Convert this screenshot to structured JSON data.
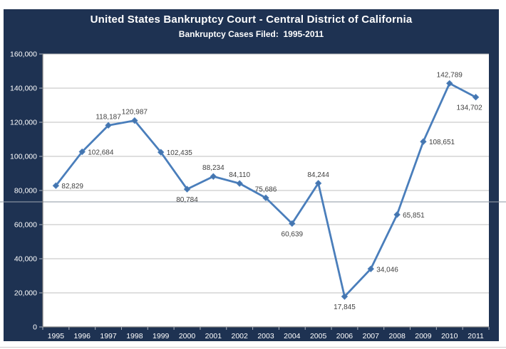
{
  "page": {
    "title": "United States Bankruptcy Court - Central District of California",
    "subtitle": "Bankruptcy Cases Filed:  1995-2011"
  },
  "colors": {
    "panel_bg": "#1e3252",
    "plot_bg": "#ffffff",
    "series_line": "#4a7ebb",
    "marker_fill": "#4575ae",
    "gridline": "#bfbfbf",
    "axis_line": "#7f7f7f",
    "tick": "#aeb6c2",
    "data_label": "#404040",
    "axis_label": "#ffffff",
    "seam_line": "rgba(150,158,170,0.55)"
  },
  "chart_data": {
    "type": "line",
    "title": "United States Bankruptcy Court - Central District of California",
    "subtitle": "Bankruptcy Cases Filed:  1995-2011",
    "categories": [
      "1995",
      "1996",
      "1997",
      "1998",
      "1999",
      "2000",
      "2001",
      "2002",
      "2003",
      "2004",
      "2005",
      "2006",
      "2007",
      "2008",
      "2009",
      "2010",
      "2011"
    ],
    "values": [
      82829,
      102684,
      118187,
      120987,
      102435,
      80784,
      88234,
      84110,
      75686,
      60639,
      84244,
      17845,
      34046,
      65851,
      108651,
      142789,
      134702
    ],
    "data_labels": [
      "82,829",
      "102,684",
      "118,187",
      "120,987",
      "102,435",
      "80,784",
      "88,234",
      "84,110",
      "75,686",
      "60,639",
      "84,244",
      "17,845",
      "34,046",
      "65,851",
      "108,651",
      "142,789",
      "134,702"
    ],
    "label_positions": [
      "right",
      "right",
      "above",
      "above",
      "right",
      "below",
      "above",
      "above",
      "above",
      "below",
      "above",
      "below",
      "right",
      "right",
      "right",
      "above",
      "below-left"
    ],
    "ylabel": "",
    "xlabel": "",
    "ylim": [
      0,
      160000
    ],
    "ytick_step": 20000,
    "ytick_labels": [
      "0",
      "20,000",
      "40,000",
      "60,000",
      "80,000",
      "100,000",
      "120,000",
      "140,000",
      "160,000"
    ],
    "grid": true,
    "legend_position": "none",
    "marker": "diamond"
  }
}
